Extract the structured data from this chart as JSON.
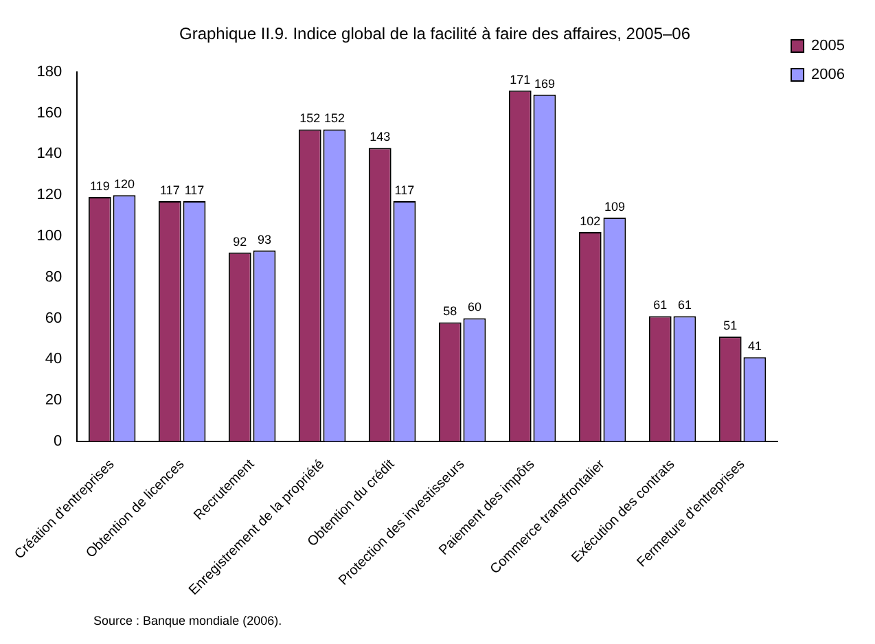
{
  "chart_data": {
    "type": "bar",
    "title": "Graphique II.9. Indice global de la facilité à faire des affaires, 2005–06",
    "categories": [
      "Création d'entreprises",
      "Obtention de licences",
      "Recrutement",
      "Enregistrement de la propriété",
      "Obtention du crédit",
      "Protection des investisseurs",
      "Paiement des impôts",
      "Commerce transfrontalier",
      "Exécution des contrats",
      "Fermeture d'entreprises"
    ],
    "series": [
      {
        "name": "2005",
        "color": "#993366",
        "values": [
          119,
          117,
          92,
          152,
          143,
          58,
          171,
          102,
          61,
          51
        ]
      },
      {
        "name": "2006",
        "color": "#9999ff",
        "values": [
          120,
          117,
          93,
          152,
          117,
          60,
          169,
          109,
          61,
          41
        ]
      }
    ],
    "ylim": [
      0,
      180
    ],
    "yticks": [
      0,
      20,
      40,
      60,
      80,
      100,
      120,
      140,
      160,
      180
    ],
    "grid": false,
    "legend": "top right",
    "data_labels": true,
    "annotations": [
      "Source : Banque mondiale (2006)."
    ]
  }
}
